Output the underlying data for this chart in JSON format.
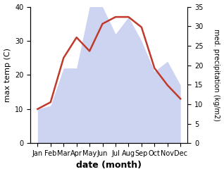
{
  "months": [
    "Jan",
    "Feb",
    "Mar",
    "Apr",
    "May",
    "Jun",
    "Jul",
    "Aug",
    "Sep",
    "Oct",
    "Nov",
    "Dec"
  ],
  "temperature": [
    10,
    12,
    25,
    31,
    27,
    35,
    37,
    37,
    34,
    22,
    17,
    13
  ],
  "precipitation": [
    10,
    11,
    22,
    22,
    40,
    40,
    32,
    37,
    30,
    21,
    24,
    17
  ],
  "temp_color": "#c0392b",
  "precip_fill_color": "#c5cdf0",
  "xlabel": "date (month)",
  "ylabel_left": "max temp (C)",
  "ylabel_right": "med. precipitation (kg/m2)",
  "ylim_left": [
    0,
    40
  ],
  "ylim_right": [
    0,
    35
  ],
  "temp_linewidth": 1.8,
  "bg_color": "#ffffff"
}
